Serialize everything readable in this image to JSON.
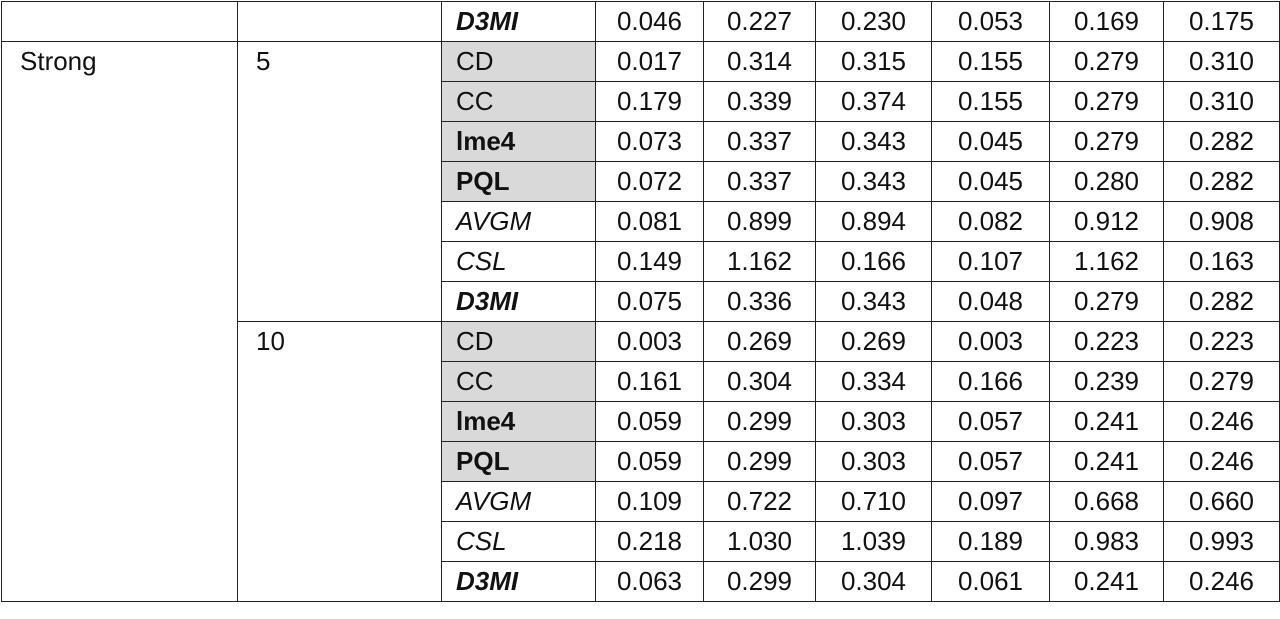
{
  "table": {
    "top_row": {
      "method": "D3MI",
      "values": [
        "0.046",
        "0.227",
        "0.230",
        "0.053",
        "0.169",
        "0.175"
      ]
    },
    "groups": [
      {
        "label": "Strong",
        "subgroups": [
          {
            "label": "5",
            "rows": [
              {
                "method": "CD",
                "values": [
                  "0.017",
                  "0.314",
                  "0.315",
                  "0.155",
                  "0.279",
                  "0.310"
                ]
              },
              {
                "method": "CC",
                "values": [
                  "0.179",
                  "0.339",
                  "0.374",
                  "0.155",
                  "0.279",
                  "0.310"
                ]
              },
              {
                "method": "lme4",
                "values": [
                  "0.073",
                  "0.337",
                  "0.343",
                  "0.045",
                  "0.279",
                  "0.282"
                ]
              },
              {
                "method": "PQL",
                "values": [
                  "0.072",
                  "0.337",
                  "0.343",
                  "0.045",
                  "0.280",
                  "0.282"
                ]
              },
              {
                "method": "AVGM",
                "values": [
                  "0.081",
                  "0.899",
                  "0.894",
                  "0.082",
                  "0.912",
                  "0.908"
                ]
              },
              {
                "method": "CSL",
                "values": [
                  "0.149",
                  "1.162",
                  "0.166",
                  "0.107",
                  "1.162",
                  "0.163"
                ]
              },
              {
                "method": "D3MI",
                "values": [
                  "0.075",
                  "0.336",
                  "0.343",
                  "0.048",
                  "0.279",
                  "0.282"
                ]
              }
            ]
          },
          {
            "label": "10",
            "rows": [
              {
                "method": "CD",
                "values": [
                  "0.003",
                  "0.269",
                  "0.269",
                  "0.003",
                  "0.223",
                  "0.223"
                ]
              },
              {
                "method": "CC",
                "values": [
                  "0.161",
                  "0.304",
                  "0.334",
                  "0.166",
                  "0.239",
                  "0.279"
                ]
              },
              {
                "method": "lme4",
                "values": [
                  "0.059",
                  "0.299",
                  "0.303",
                  "0.057",
                  "0.241",
                  "0.246"
                ]
              },
              {
                "method": "PQL",
                "values": [
                  "0.059",
                  "0.299",
                  "0.303",
                  "0.057",
                  "0.241",
                  "0.246"
                ]
              },
              {
                "method": "AVGM",
                "values": [
                  "0.109",
                  "0.722",
                  "0.710",
                  "0.097",
                  "0.668",
                  "0.660"
                ]
              },
              {
                "method": "CSL",
                "values": [
                  "0.218",
                  "1.030",
                  "1.039",
                  "0.189",
                  "0.983",
                  "0.993"
                ]
              },
              {
                "method": "D3MI",
                "values": [
                  "0.063",
                  "0.299",
                  "0.304",
                  "0.061",
                  "0.241",
                  "0.246"
                ]
              }
            ]
          }
        ]
      }
    ]
  }
}
